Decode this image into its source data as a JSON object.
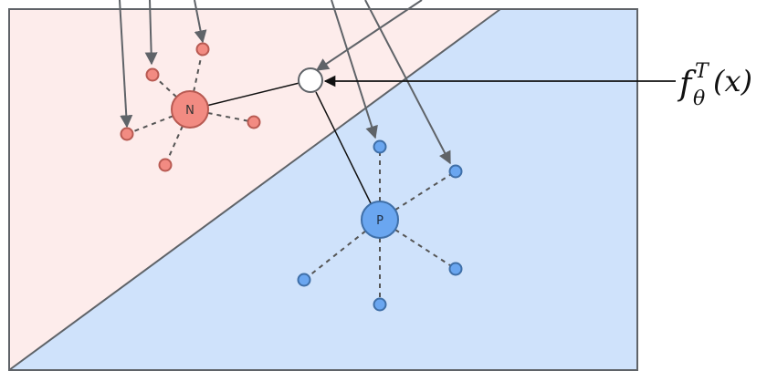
{
  "colors": {
    "negative_region": "#fdeceb",
    "positive_region": "#cfe2fb",
    "border": "#5f6368",
    "negative_node": "#f28b82",
    "negative_stroke": "#b85a52",
    "positive_node": "#6aa6f0",
    "positive_stroke": "#3f6fa8",
    "query_node": "#ffffff",
    "edge": "#111111",
    "dashed_edge": "#555555"
  },
  "nodes": {
    "negative_label": "N",
    "positive_label": "P"
  },
  "formula": {
    "f": "f",
    "sup": "T",
    "sub": "θ",
    "arg": "(x)"
  },
  "icons": {
    "arrowhead": "triangle-arrowhead-icon"
  }
}
